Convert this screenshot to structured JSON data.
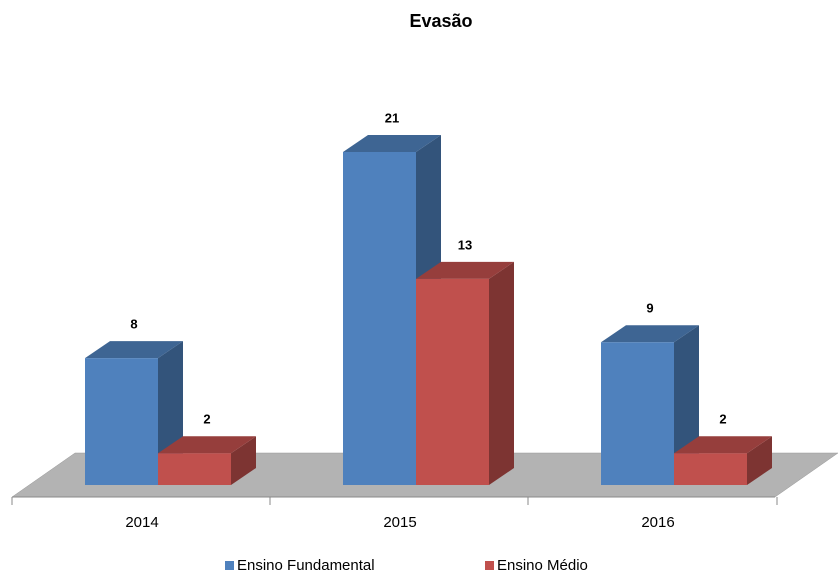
{
  "chart_data": {
    "type": "bar3d",
    "title": "Evasão",
    "categories": [
      "2014",
      "2015",
      "2016"
    ],
    "series": [
      {
        "name": "Ensino Fundamental",
        "color": "#4f81bd",
        "values": [
          8,
          21,
          9
        ]
      },
      {
        "name": "Ensino Médio",
        "color": "#c0504d",
        "values": [
          2,
          13,
          2
        ]
      }
    ]
  }
}
